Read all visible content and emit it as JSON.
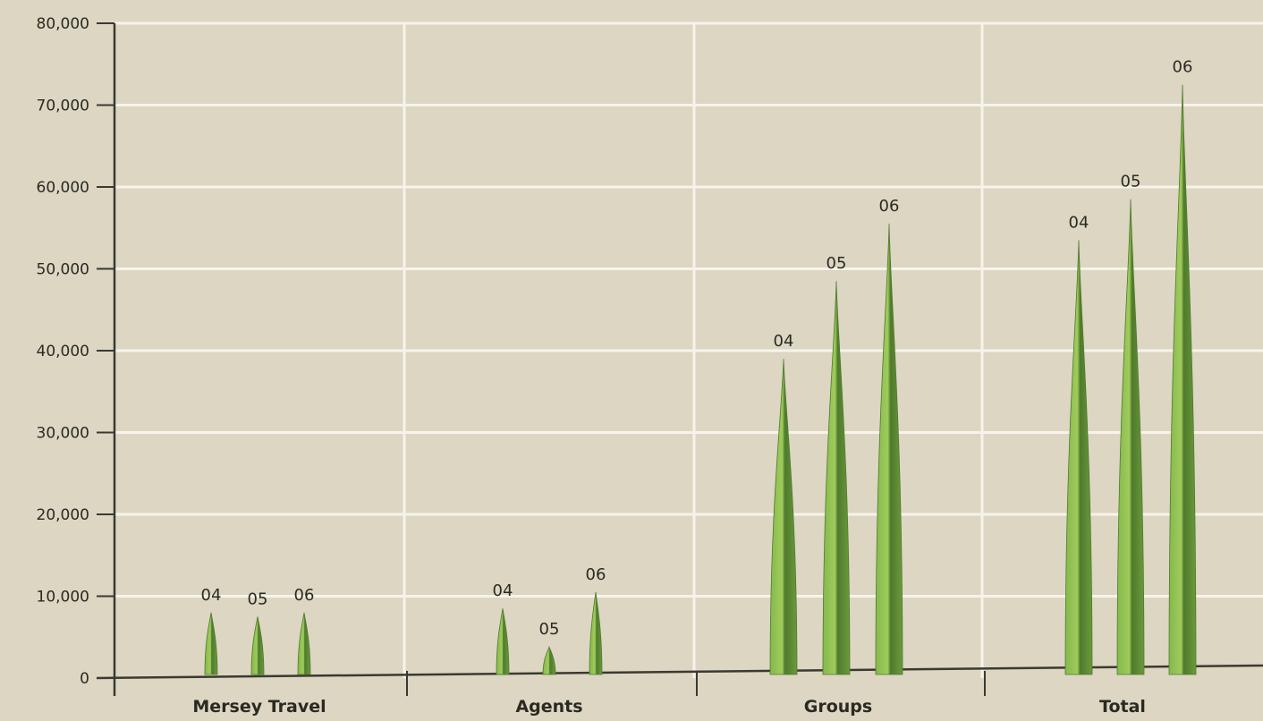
{
  "chart_data": {
    "type": "bar",
    "title": "",
    "xlabel": "",
    "ylabel": "",
    "ylim": [
      0,
      80000
    ],
    "yticks": [
      0,
      10000,
      20000,
      30000,
      40000,
      50000,
      60000,
      70000,
      80000
    ],
    "ytick_labels": [
      "0",
      "10,000",
      "20,000",
      "30,000",
      "40,000",
      "50,000",
      "60,000",
      "70,000",
      "80,000"
    ],
    "categories": [
      "Mersey Travel",
      "Agents",
      "Groups",
      "Total"
    ],
    "series": [
      {
        "name": "04",
        "values": [
          8000,
          8500,
          39000,
          53500
        ]
      },
      {
        "name": "05",
        "values": [
          7500,
          3800,
          48500,
          58500
        ]
      },
      {
        "name": "06",
        "values": [
          8000,
          10500,
          55500,
          72500
        ]
      }
    ],
    "grid": true,
    "legend": "none",
    "colors": {
      "background": "#dcd6c3",
      "grid": "#f6f4ea",
      "axis": "#3a3a30",
      "bar_dark": "#4f7a2c",
      "bar_light": "#9ec75a",
      "text": "#2a2a22"
    }
  }
}
